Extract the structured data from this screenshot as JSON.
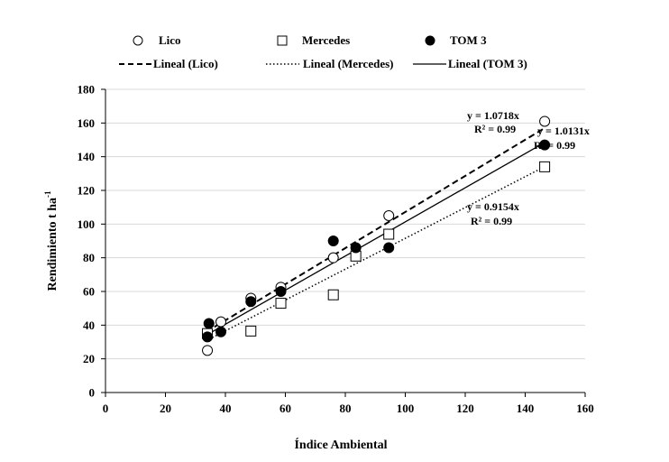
{
  "chart_data": {
    "type": "scatter",
    "xlabel": "Índice Ambiental",
    "ylabel": "Rendimiento t ha",
    "ylabel_sup": "-1",
    "xlim": [
      0,
      160
    ],
    "ylim": [
      0,
      180
    ],
    "x_ticks": [
      0,
      20,
      40,
      60,
      80,
      100,
      120,
      140,
      160
    ],
    "y_ticks": [
      0,
      20,
      40,
      60,
      80,
      100,
      120,
      140,
      160,
      180
    ],
    "x_tick_labels": [
      "0",
      "20",
      "40",
      "60",
      "80",
      "100",
      "120",
      "140",
      "160"
    ],
    "y_tick_labels": [
      "0",
      "20",
      "40",
      "60",
      "80",
      "100",
      "120",
      "140",
      "160",
      "180"
    ],
    "grid": "horizontal",
    "series": [
      {
        "name": "Lico",
        "marker": "open-circle",
        "points": [
          [
            34.0,
            25.0
          ],
          [
            34.0,
            35.0
          ],
          [
            38.5,
            42.0
          ],
          [
            48.5,
            56.0
          ],
          [
            58.5,
            62.5
          ],
          [
            76.0,
            80.0
          ],
          [
            94.5,
            105.0
          ],
          [
            146.5,
            161.0
          ]
        ]
      },
      {
        "name": "Mercedes",
        "marker": "open-square",
        "points": [
          [
            34.0,
            35.0
          ],
          [
            48.5,
            36.5
          ],
          [
            58.5,
            53.0
          ],
          [
            76.0,
            58.0
          ],
          [
            83.5,
            81.0
          ],
          [
            94.5,
            94.0
          ],
          [
            146.5,
            134.0
          ]
        ]
      },
      {
        "name": "TOM 3",
        "marker": "filled-circle",
        "points": [
          [
            34.0,
            33.0
          ],
          [
            34.5,
            41.0
          ],
          [
            38.5,
            36.0
          ],
          [
            48.5,
            54.0
          ],
          [
            58.5,
            60.0
          ],
          [
            76.0,
            90.0
          ],
          [
            83.5,
            86.0
          ],
          [
            94.5,
            86.0
          ],
          [
            146.5,
            147.0
          ]
        ]
      }
    ],
    "trendlines": [
      {
        "name": "Lineal (Lico)",
        "style": "dashed",
        "slope": 1.0718,
        "x_range": [
          33.5,
          146.5
        ],
        "equation": "y = 1.0718x",
        "r2": "R² = 0.99"
      },
      {
        "name": "Lineal (Mercedes)",
        "style": "dotted",
        "slope": 0.9154,
        "x_range": [
          33.5,
          146.5
        ],
        "equation": "y = 0.9154x",
        "r2": "R² = 0.99"
      },
      {
        "name": "Lineal (TOM 3)",
        "style": "solid",
        "slope": 1.0131,
        "x_range": [
          33.5,
          146.5
        ],
        "equation": "y = 1.0131x",
        "r2": "R² = 0.99"
      }
    ],
    "legend": {
      "placement": "top",
      "series_labels": [
        "Lico",
        "Mercedes",
        "TOM 3"
      ],
      "trend_labels": [
        "Lineal (Lico)",
        "Lineal (Mercedes)",
        "Lineal (TOM 3)"
      ]
    }
  }
}
